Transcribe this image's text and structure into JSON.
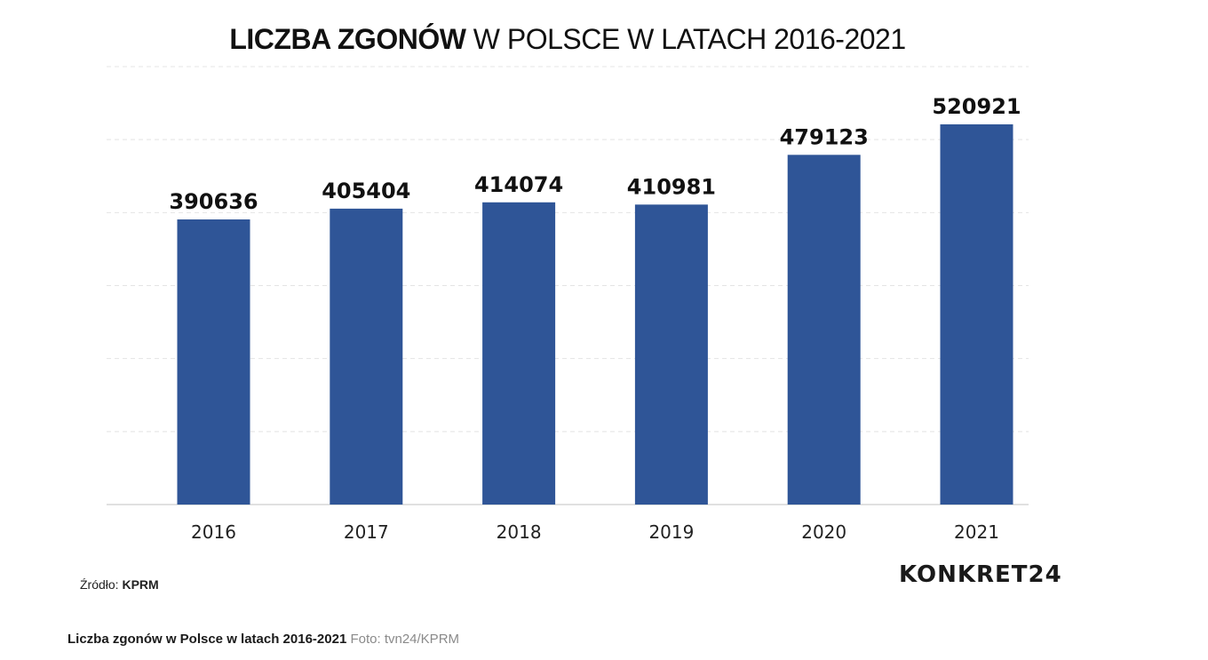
{
  "chart_data": {
    "type": "bar",
    "title_bold": "LICZBA ZGONÓW",
    "title_rest": "W POLSCE W LATACH 2016-2021",
    "categories": [
      "2016",
      "2017",
      "2018",
      "2019",
      "2020",
      "2021"
    ],
    "values": [
      390636,
      405404,
      414074,
      410981,
      479123,
      520921
    ],
    "value_labels": [
      "390636",
      "405404",
      "414074",
      "410981",
      "479123",
      "520921"
    ],
    "ylim": [
      0,
      600000
    ],
    "grid": true,
    "bar_color": "#2f5597"
  },
  "source": {
    "label": "Źródło:",
    "value": "KPRM"
  },
  "logo": {
    "text": "KONKRET24"
  },
  "caption": {
    "title": "Liczba zgonów w Polsce w latach 2016-2021",
    "credit": "Foto: tvn24/KPRM"
  }
}
